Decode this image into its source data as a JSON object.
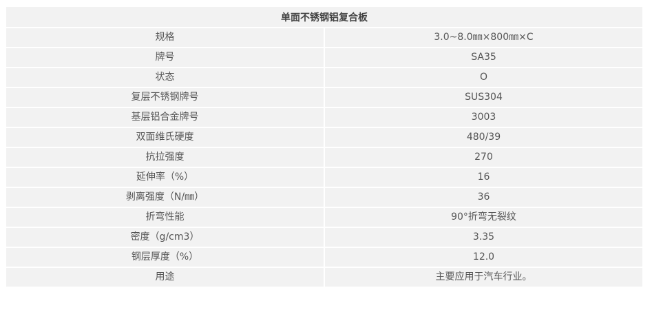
{
  "table": {
    "title": "单面不锈钢铝复合板",
    "rows": [
      {
        "label": "规格",
        "value": "3.0~8.0㎜×800㎜×C"
      },
      {
        "label": "牌号",
        "value": "SA35"
      },
      {
        "label": "状态",
        "value": "O"
      },
      {
        "label": "复层不锈钢牌号",
        "value": "SUS304"
      },
      {
        "label": "基层铝合金牌号",
        "value": "3003"
      },
      {
        "label": "双面维氏硬度",
        "value": "480/39"
      },
      {
        "label": "抗拉强度",
        "value": "270"
      },
      {
        "label": "延伸率（%）",
        "value": "16"
      },
      {
        "label": "剥离强度（N/㎜）",
        "value": "36"
      },
      {
        "label": "折弯性能",
        "value": "90°折弯无裂纹"
      },
      {
        "label": "密度（g/cm3）",
        "value": "3.35"
      },
      {
        "label": "钢层厚度（%）",
        "value": "12.0"
      },
      {
        "label": "用途",
        "value": "主要应用于汽车行业。"
      }
    ]
  }
}
